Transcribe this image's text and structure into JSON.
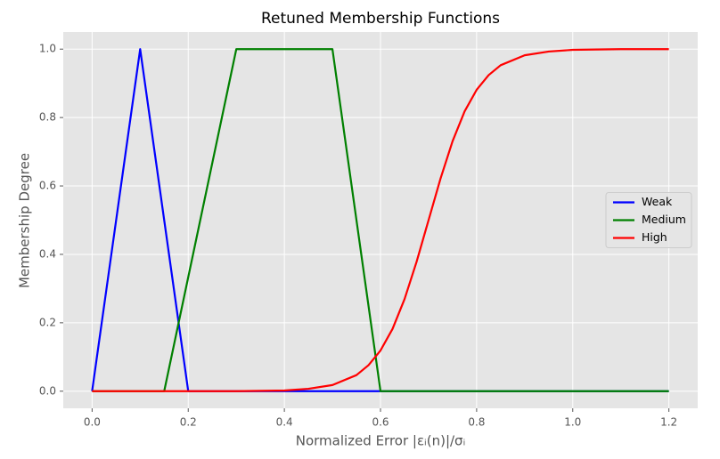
{
  "chart_data": {
    "type": "line",
    "title": "Retuned Membership Functions",
    "x_label": "Normalized Error |εᵢ(n)|/σᵢ",
    "y_label": "Membership Degree",
    "xlim": [
      -0.06,
      1.26
    ],
    "ylim": [
      -0.05,
      1.05
    ],
    "xticks": [
      {
        "value": 0,
        "label": "0.0"
      },
      0.2,
      0.4,
      0.6,
      0.8,
      {
        "value": 1,
        "label": "1.0"
      },
      1.2
    ],
    "yticks": [
      {
        "value": 0,
        "label": "0.0"
      },
      0.2,
      0.4,
      0.6,
      0.8,
      {
        "value": 1,
        "label": "1.0"
      }
    ],
    "grid": true,
    "legend": "center right",
    "series": [
      {
        "name": "Weak",
        "color": "#0000ff",
        "x": [
          0,
          0.1,
          0.2,
          1.2
        ],
        "values": [
          0,
          1,
          0,
          0
        ]
      },
      {
        "name": "Medium",
        "color": "#008000",
        "x": [
          0,
          0.15,
          0.3,
          0.5,
          0.6,
          1.2
        ],
        "values": [
          0,
          0,
          1,
          1,
          0,
          0
        ]
      },
      {
        "name": "High",
        "color": "#ff0000",
        "x": [
          0,
          0.05,
          0.1,
          0.15,
          0.2,
          0.25,
          0.3,
          0.35,
          0.4,
          0.45,
          0.5,
          0.55,
          0.575,
          0.6,
          0.625,
          0.65,
          0.675,
          0.7,
          0.725,
          0.75,
          0.775,
          0.8,
          0.825,
          0.85,
          0.9,
          0.95,
          1.0,
          1.05,
          1.1,
          1.15,
          1.2
        ],
        "values": [
          0,
          0,
          0,
          0,
          0,
          0,
          0,
          0.001,
          0.002,
          0.007,
          0.018,
          0.047,
          0.076,
          0.119,
          0.182,
          0.269,
          0.378,
          0.5,
          0.622,
          0.731,
          0.818,
          0.881,
          0.924,
          0.953,
          0.982,
          0.993,
          0.998,
          0.999,
          1,
          1,
          1
        ]
      }
    ]
  }
}
